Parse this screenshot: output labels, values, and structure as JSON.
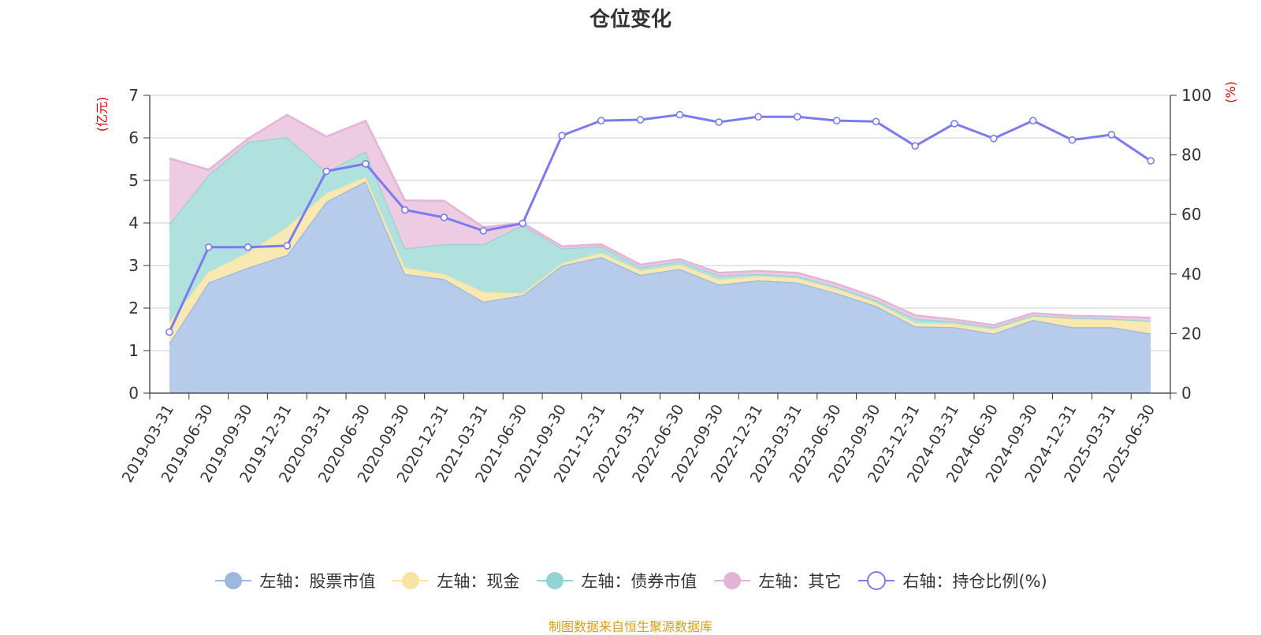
{
  "title": "仓位变化",
  "source_note": "制图数据来自恒生聚源数据库",
  "chart_data": {
    "type": "area",
    "title": "仓位变化",
    "categories": [
      "2019-03-31",
      "2019-06-30",
      "2019-09-30",
      "2019-12-31",
      "2020-03-31",
      "2020-06-30",
      "2020-09-30",
      "2020-12-31",
      "2021-03-31",
      "2021-06-30",
      "2021-09-30",
      "2021-12-31",
      "2022-03-31",
      "2022-06-30",
      "2022-09-30",
      "2022-12-31",
      "2023-03-31",
      "2023-06-30",
      "2023-09-30",
      "2023-12-31",
      "2024-03-31",
      "2024-06-30",
      "2024-09-30",
      "2024-12-31",
      "2025-03-31",
      "2025-06-30"
    ],
    "left_axis": {
      "label": "(亿元)",
      "ylim": [
        0,
        7
      ],
      "ticks": [
        0,
        1,
        2,
        3,
        4,
        5,
        6,
        7
      ]
    },
    "right_axis": {
      "label": "(%)",
      "ylim": [
        0,
        100
      ],
      "ticks": [
        0,
        20,
        40,
        60,
        80,
        100
      ]
    },
    "grid": true,
    "legend_position": "bottom",
    "stacked": true,
    "series": [
      {
        "name": "左轴：股票市值",
        "axis": "left",
        "type": "area",
        "color": "#9bb8e0",
        "fill": "#b7cbea",
        "values": [
          1.17,
          2.6,
          2.95,
          3.25,
          4.5,
          4.98,
          2.8,
          2.68,
          2.15,
          2.3,
          3.0,
          3.2,
          2.78,
          2.92,
          2.55,
          2.65,
          2.6,
          2.35,
          2.05,
          1.57,
          1.55,
          1.4,
          1.72,
          1.55,
          1.55,
          1.4
        ]
      },
      {
        "name": "左轴：现金",
        "axis": "left",
        "type": "area",
        "color": "#f7e4a0",
        "fill": "#f8e9b2",
        "values": [
          0.5,
          0.25,
          0.35,
          0.65,
          0.2,
          0.1,
          0.15,
          0.12,
          0.23,
          0.05,
          0.05,
          0.1,
          0.1,
          0.1,
          0.12,
          0.1,
          0.1,
          0.1,
          0.08,
          0.08,
          0.08,
          0.1,
          0.08,
          0.2,
          0.18,
          0.28
        ]
      },
      {
        "name": "左轴：债券市值",
        "axis": "left",
        "type": "area",
        "color": "#93d3d3",
        "fill": "#b1e1df",
        "values": [
          2.3,
          2.28,
          2.6,
          2.12,
          0.5,
          0.6,
          0.45,
          0.7,
          1.12,
          1.6,
          0.35,
          0.15,
          0.08,
          0.08,
          0.1,
          0.05,
          0.05,
          0.05,
          0.05,
          0.1,
          0.05,
          0.05,
          0.03,
          0.02,
          0.02,
          0.02
        ]
      },
      {
        "name": "左轴：其它",
        "axis": "left",
        "type": "area",
        "color": "#e6b3d8",
        "fill": "#edcbe3",
        "values": [
          1.55,
          0.12,
          0.08,
          0.52,
          0.83,
          0.72,
          1.13,
          1.02,
          0.4,
          0.05,
          0.05,
          0.05,
          0.06,
          0.05,
          0.06,
          0.07,
          0.08,
          0.07,
          0.07,
          0.08,
          0.05,
          0.05,
          0.05,
          0.05,
          0.05,
          0.07
        ]
      },
      {
        "name": "右轴：持仓比例(%)",
        "axis": "right",
        "type": "line",
        "color": "#7b7bf0",
        "values": [
          20.5,
          49,
          49,
          49.5,
          74.5,
          77,
          61.5,
          59,
          54.5,
          57,
          86.5,
          91.5,
          91.8,
          93.5,
          91,
          92.8,
          92.8,
          91.5,
          91.2,
          83,
          90.5,
          85.5,
          91.5,
          85,
          86.8,
          78
        ]
      }
    ]
  }
}
